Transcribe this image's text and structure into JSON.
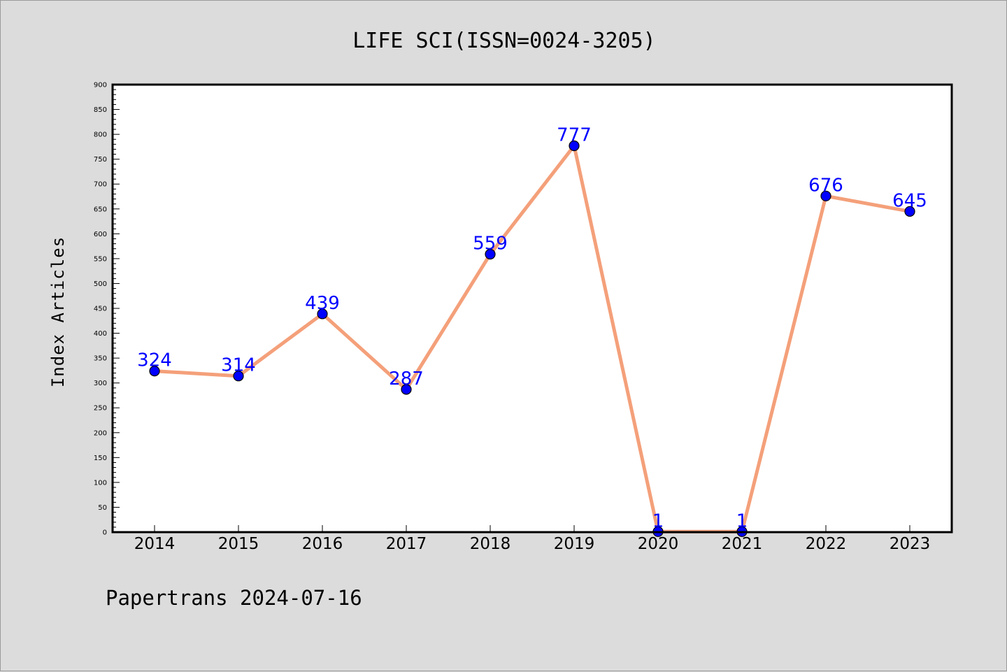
{
  "chart_data": {
    "type": "line",
    "title": "LIFE SCI(ISSN=0024-3205)",
    "xlabel": "",
    "ylabel": "Index Articles",
    "footer": "Papertrans 2024-07-16",
    "categories": [
      "2014",
      "2015",
      "2016",
      "2017",
      "2018",
      "2019",
      "2020",
      "2021",
      "2022",
      "2023"
    ],
    "values": [
      324,
      314,
      439,
      287,
      559,
      777,
      1,
      1,
      676,
      645
    ],
    "data_labels": [
      "324",
      "314",
      "439",
      "287",
      "559",
      "777",
      "1",
      "1",
      "676",
      "645"
    ],
    "ylim": [
      0,
      900
    ],
    "yticks": [
      0,
      50,
      100,
      150,
      200,
      250,
      300,
      350,
      400,
      450,
      500,
      550,
      600,
      650,
      700,
      750,
      800,
      850,
      900
    ],
    "ytick_labels": [
      "0",
      "50",
      "100",
      "150",
      "200",
      "250",
      "300",
      "350",
      "400",
      "450",
      "500",
      "550",
      "600",
      "650",
      "700",
      "750",
      "800",
      "850",
      "900"
    ],
    "grid": false,
    "legend": "none",
    "colors": {
      "line": "#f4a07a",
      "marker": "#0000ff",
      "label": "#0000ff",
      "background": "#dcdcdc",
      "plot_background": "#ffffff"
    }
  }
}
